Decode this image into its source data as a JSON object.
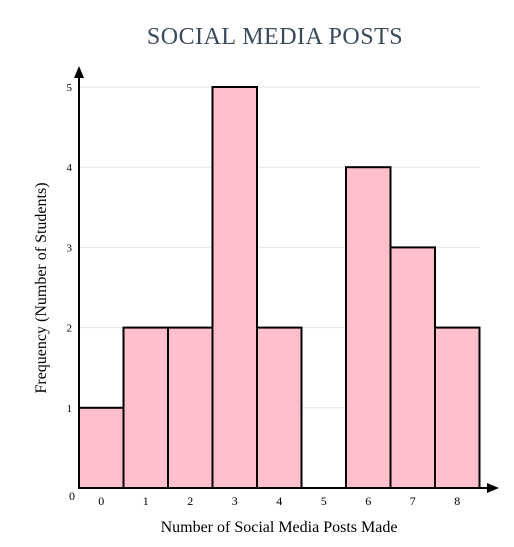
{
  "chart_data": {
    "type": "bar",
    "title": "SOCIAL MEDIA POSTS",
    "xlabel": "Number of Social Media Posts Made",
    "ylabel": "Frequency (Number of Students)",
    "origin_label": "0",
    "categories": [
      "0",
      "1",
      "2",
      "3",
      "4",
      "5",
      "6",
      "7",
      "8"
    ],
    "values": [
      1,
      2,
      2,
      5,
      2,
      0,
      4,
      3,
      2
    ],
    "y_ticks": [
      "1",
      "2",
      "3",
      "4",
      "5"
    ],
    "ylim": [
      0,
      5
    ],
    "grid": true,
    "bar_color": "#ffc0cb",
    "bar_stroke": "#000000"
  }
}
